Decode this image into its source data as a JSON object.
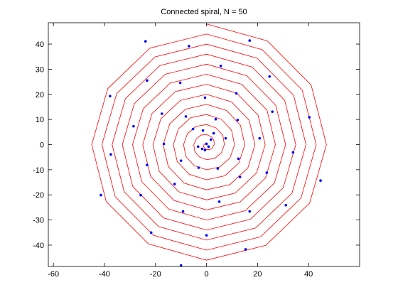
{
  "chart_data": {
    "type": "line",
    "title": "Connected spiral, N = 50",
    "xlim": [
      -62,
      60
    ],
    "ylim": [
      -48.5,
      48.5
    ],
    "xticks": [
      -60,
      -40,
      -20,
      0,
      20,
      40
    ],
    "yticks": [
      -40,
      -30,
      -20,
      -10,
      0,
      10,
      20,
      30,
      40
    ],
    "grid": false,
    "series": [
      {
        "style": "line",
        "color": "#ff0000",
        "x": [
          0,
          -0.2,
          -0.6,
          -1,
          -1.2,
          -0.8,
          0,
          1.2,
          2.3,
          3,
          2.9,
          1.8,
          0,
          -2.2,
          -4.0,
          -5,
          -4.6,
          -2.8,
          0,
          3.2,
          5.8,
          7,
          6.4,
          3.8,
          0,
          -4.2,
          -7.5,
          -9,
          -8.1,
          -4.8,
          0,
          5.2,
          9.2,
          11,
          9.8,
          5.8,
          0,
          -6.2,
          -11.0,
          -13,
          -11.5,
          -6.8,
          0,
          7.2,
          12.7,
          15,
          13.3,
          7.8,
          0,
          -8.2,
          -14.4,
          -17,
          -15.0,
          -8.8,
          0,
          9.2,
          16.2,
          19,
          16.7,
          9.8,
          0,
          -10.2,
          -17.9,
          -21,
          -18.5,
          -10.8,
          0,
          11.2,
          19.6,
          23,
          20.2,
          11.8,
          0,
          -12.2,
          -21.4,
          -25,
          -21.9,
          -12.8,
          0,
          13.2,
          23.1,
          27,
          23.7,
          13.8,
          0,
          -14.2,
          -24.8,
          -29,
          -25.4,
          -14.8,
          0,
          15.2,
          26.6,
          31,
          27.1,
          15.8,
          0,
          -16.2,
          -28.3,
          -33,
          -28.9,
          -16.8,
          0,
          17.2,
          30.0,
          35,
          30.6,
          17.8,
          0,
          -18.2,
          -31.8,
          -37,
          -32.3,
          -18.8,
          0,
          19.2,
          33.5,
          39,
          34.1,
          19.8,
          0,
          -20.2,
          -35.2,
          -41,
          -35.8,
          -20.8,
          0,
          21.2,
          37.0,
          43,
          37.5,
          21.8,
          0,
          -22.2,
          -38.7,
          -45,
          -39.3,
          -22.8,
          0,
          23.2,
          40.4,
          47,
          41.0,
          23.8,
          0
        ],
        "values": [
          0,
          0.3,
          0.3,
          0,
          -0.7,
          -1.4,
          -2,
          -2.0,
          -1.3,
          0,
          1.7,
          3.2,
          4,
          3.8,
          2.3,
          0,
          -2.7,
          -4.9,
          -6,
          -5.5,
          -3.3,
          0,
          3.7,
          6.6,
          8,
          7.2,
          4.3,
          0,
          -4.7,
          -8.4,
          -10,
          -8.9,
          -5.3,
          0,
          5.7,
          10.1,
          12,
          10.7,
          6.3,
          0,
          -6.7,
          -11.8,
          -14,
          -12.4,
          -7.3,
          0,
          7.7,
          13.6,
          16,
          14.1,
          8.3,
          0,
          -8.7,
          -15.3,
          -18,
          -15.9,
          -9.3,
          0,
          9.7,
          17.0,
          20,
          17.6,
          10.3,
          0,
          -10.7,
          -18.8,
          -22,
          -19.3,
          -11.3,
          0,
          11.7,
          20.5,
          24,
          21.1,
          12.3,
          0,
          -12.7,
          -22.2,
          -26,
          -22.8,
          -13.3,
          0,
          13.7,
          24.0,
          28,
          24.5,
          14.3,
          0,
          -14.7,
          -25.7,
          -30,
          -26.3,
          -15.3,
          0,
          15.7,
          27.4,
          32,
          28.0,
          16.3,
          0,
          -16.7,
          -29.2,
          -34,
          -29.7,
          -17.3,
          0,
          17.7,
          30.9,
          36,
          31.5,
          18.3,
          0,
          -18.7,
          -32.6,
          -38,
          -33.2,
          -19.3,
          0,
          19.7,
          34.4,
          40,
          34.9,
          20.3,
          0,
          -20.7,
          -36.1,
          -42,
          -36.7,
          -21.3,
          0,
          21.7,
          37.8,
          44,
          38.4,
          22.3,
          0,
          -22.7,
          -39.5,
          -46,
          -40.1,
          -23.3,
          0,
          23.7,
          41.3,
          48
        ]
      },
      {
        "style": "markers",
        "color": "#0000ff",
        "x": [
          -23.9,
          16.9,
          -6.9,
          5.6,
          24.7,
          -23.3,
          -10.3,
          11.7,
          -37.8,
          -0.6,
          25.8,
          -17.5,
          -8.1,
          3.6,
          40.3,
          12.2,
          -28.6,
          -5.3,
          -1.4,
          2.8,
          7.5,
          -16.7,
          20.8,
          33.9,
          -37.5,
          12.5,
          -10,
          -3.1,
          4.4,
          -23.3,
          23.6,
          13.1,
          44.7,
          -12.5,
          5,
          -25.8,
          -41.4,
          31.1,
          -9.2,
          16.9,
          -21.7,
          0,
          15.3,
          -10,
          0,
          0.8,
          -1.7,
          1.7,
          -3.3,
          -0.6
        ],
        "values": [
          41.1,
          41.4,
          39.2,
          31.3,
          27.1,
          25.5,
          24.6,
          20.4,
          19.3,
          18.7,
          13.1,
          12.3,
          11.2,
          10.1,
          10.9,
          9.8,
          7.3,
          6.2,
          5.6,
          4.5,
          2.5,
          0.3,
          2.5,
          -3.1,
          -3.9,
          -5.6,
          -6.4,
          -9.2,
          -9.5,
          -8.1,
          -11.2,
          -12.9,
          -14.3,
          -15.7,
          -22.7,
          -20.1,
          -20.1,
          -24.1,
          -26.6,
          -26.6,
          -35,
          -36.1,
          -41.7,
          -48.1,
          0.3,
          -0.8,
          -1.7,
          2,
          -0.8,
          -2.2
        ]
      }
    ]
  }
}
